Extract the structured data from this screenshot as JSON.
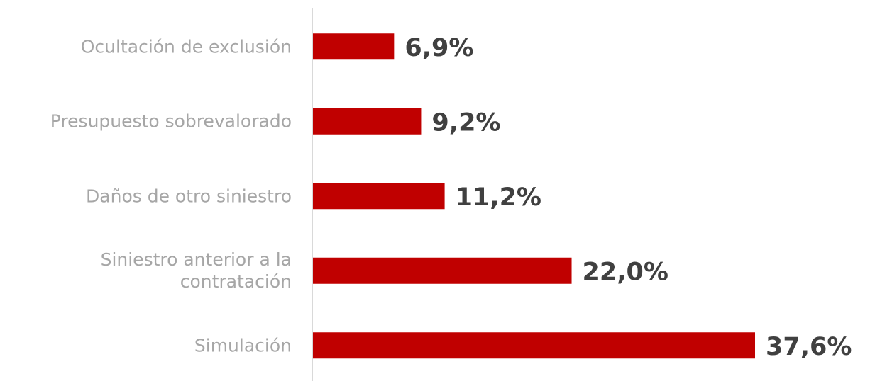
{
  "chart_data": {
    "type": "bar",
    "orientation": "horizontal",
    "categories": [
      "Ocultación de exclusión",
      "Presupuesto sobrevalorado",
      "Daños de otro siniestro",
      "Siniestro anterior a la contratación",
      "Simulación"
    ],
    "values": [
      6.9,
      9.2,
      11.2,
      22.0,
      37.6
    ],
    "value_labels": [
      "6,9%",
      "9,2%",
      "11,2%",
      "22,0%",
      "37,6%"
    ],
    "color": "#c00000"
  }
}
